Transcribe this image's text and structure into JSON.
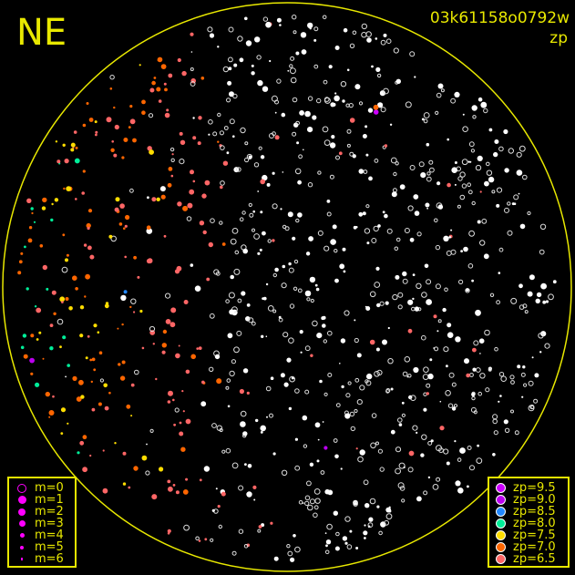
{
  "direction_label": "NE",
  "frame_id": "03k61158o0792w",
  "subtitle": "zp",
  "colors": {
    "frame": "#e8e800",
    "unmatched_star": "#ffffff",
    "magnitude_marker": "#ff00ff"
  },
  "magnitude_legend": [
    {
      "label": "m=0"
    },
    {
      "label": "m=1"
    },
    {
      "label": "m=2"
    },
    {
      "label": "m=3"
    },
    {
      "label": "m=4"
    },
    {
      "label": "m=5"
    },
    {
      "label": "m=6"
    }
  ],
  "zp_legend": [
    {
      "label": "zp=9.5",
      "color": "#cc00ff"
    },
    {
      "label": "zp=9.0",
      "color": "#bb00ee"
    },
    {
      "label": "zp=8.5",
      "color": "#2288ff"
    },
    {
      "label": "zp=8.0",
      "color": "#00ee99"
    },
    {
      "label": "zp=7.5",
      "color": "#ffdd00"
    },
    {
      "label": "zp=7.0",
      "color": "#ff6600"
    },
    {
      "label": "zp=6.5",
      "color": "#ff6666"
    }
  ]
}
